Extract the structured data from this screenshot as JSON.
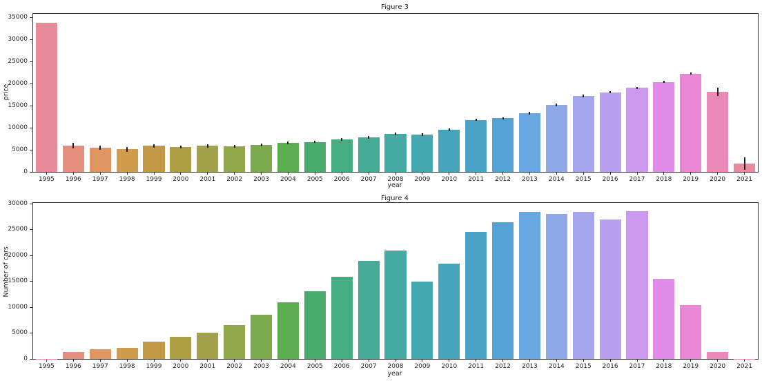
{
  "figure": {
    "background": "#ffffff",
    "text_color": "#262626",
    "errorbar_color": "#1c1c1c"
  },
  "chart_data": [
    {
      "type": "bar",
      "title": "Figure 3",
      "xlabel": "year",
      "ylabel": "price",
      "ylim": [
        0,
        35800
      ],
      "yticks": [
        0,
        5000,
        10000,
        15000,
        20000,
        25000,
        30000,
        35000
      ],
      "grid": false,
      "legend": null,
      "categories": [
        "1995",
        "1996",
        "1997",
        "1998",
        "1999",
        "2000",
        "2001",
        "2002",
        "2003",
        "2004",
        "2005",
        "2006",
        "2007",
        "2008",
        "2009",
        "2010",
        "2011",
        "2012",
        "2013",
        "2014",
        "2015",
        "2016",
        "2017",
        "2018",
        "2019",
        "2020",
        "2021"
      ],
      "values": [
        33800,
        5950,
        5450,
        5100,
        5900,
        5650,
        5900,
        5750,
        6100,
        6550,
        6800,
        7350,
        7800,
        8550,
        8400,
        9550,
        11750,
        12150,
        13300,
        15150,
        17150,
        18000,
        19050,
        20350,
        22250,
        18100,
        1900
      ],
      "errors": [
        0,
        600,
        500,
        500,
        400,
        350,
        400,
        350,
        350,
        300,
        300,
        300,
        300,
        300,
        300,
        300,
        250,
        250,
        250,
        250,
        300,
        250,
        250,
        250,
        250,
        900,
        1450
      ],
      "colors": [
        "#e78b9b",
        "#e68f7d",
        "#df9660",
        "#d19c4c",
        "#c29a45",
        "#ae9e44",
        "#a1a24a",
        "#92a64c",
        "#7cab4e",
        "#5cad50",
        "#48ad6c",
        "#44ad83",
        "#43ab96",
        "#43aaa4",
        "#44a8af",
        "#47a5bb",
        "#4ba3c7",
        "#54a2d5",
        "#68a7e2",
        "#8fa9e9",
        "#a4a5ec",
        "#b89fef",
        "#cc97ef",
        "#df8de9",
        "#e987d4",
        "#ea88b8",
        "#e98a9f"
      ]
    },
    {
      "type": "bar",
      "title": "Figure 4",
      "xlabel": "year",
      "ylabel": "Number of cars",
      "ylim": [
        0,
        30200
      ],
      "yticks": [
        0,
        5000,
        10000,
        15000,
        20000,
        25000,
        30000
      ],
      "grid": false,
      "legend": null,
      "categories": [
        "1995",
        "1996",
        "1997",
        "1998",
        "1999",
        "2000",
        "2001",
        "2002",
        "2003",
        "2004",
        "2005",
        "2006",
        "2007",
        "2008",
        "2009",
        "2010",
        "2011",
        "2012",
        "2013",
        "2014",
        "2015",
        "2016",
        "2017",
        "2018",
        "2019",
        "2020",
        "2021"
      ],
      "values": [
        30,
        1300,
        1850,
        2100,
        3350,
        4300,
        5100,
        6500,
        8500,
        11000,
        13100,
        15900,
        19000,
        21000,
        14900,
        18400,
        24600,
        26400,
        28400,
        28000,
        28500,
        27000,
        28600,
        15500,
        10400,
        1400,
        20
      ],
      "errors": [
        0,
        0,
        0,
        0,
        0,
        0,
        0,
        0,
        0,
        0,
        0,
        0,
        0,
        0,
        0,
        0,
        0,
        0,
        0,
        0,
        0,
        0,
        0,
        0,
        0,
        0,
        0
      ],
      "colors": [
        "#e78b9b",
        "#e68f7d",
        "#df9660",
        "#d19c4c",
        "#c29a45",
        "#ae9e44",
        "#a1a24a",
        "#92a64c",
        "#7cab4e",
        "#5cad50",
        "#48ad6c",
        "#44ad83",
        "#43ab96",
        "#43aaa4",
        "#44a8af",
        "#47a5bb",
        "#4ba3c7",
        "#54a2d5",
        "#68a7e2",
        "#8fa9e9",
        "#a4a5ec",
        "#b89fef",
        "#cc97ef",
        "#df8de9",
        "#e987d4",
        "#ea88b8",
        "#e98a9f"
      ]
    }
  ]
}
